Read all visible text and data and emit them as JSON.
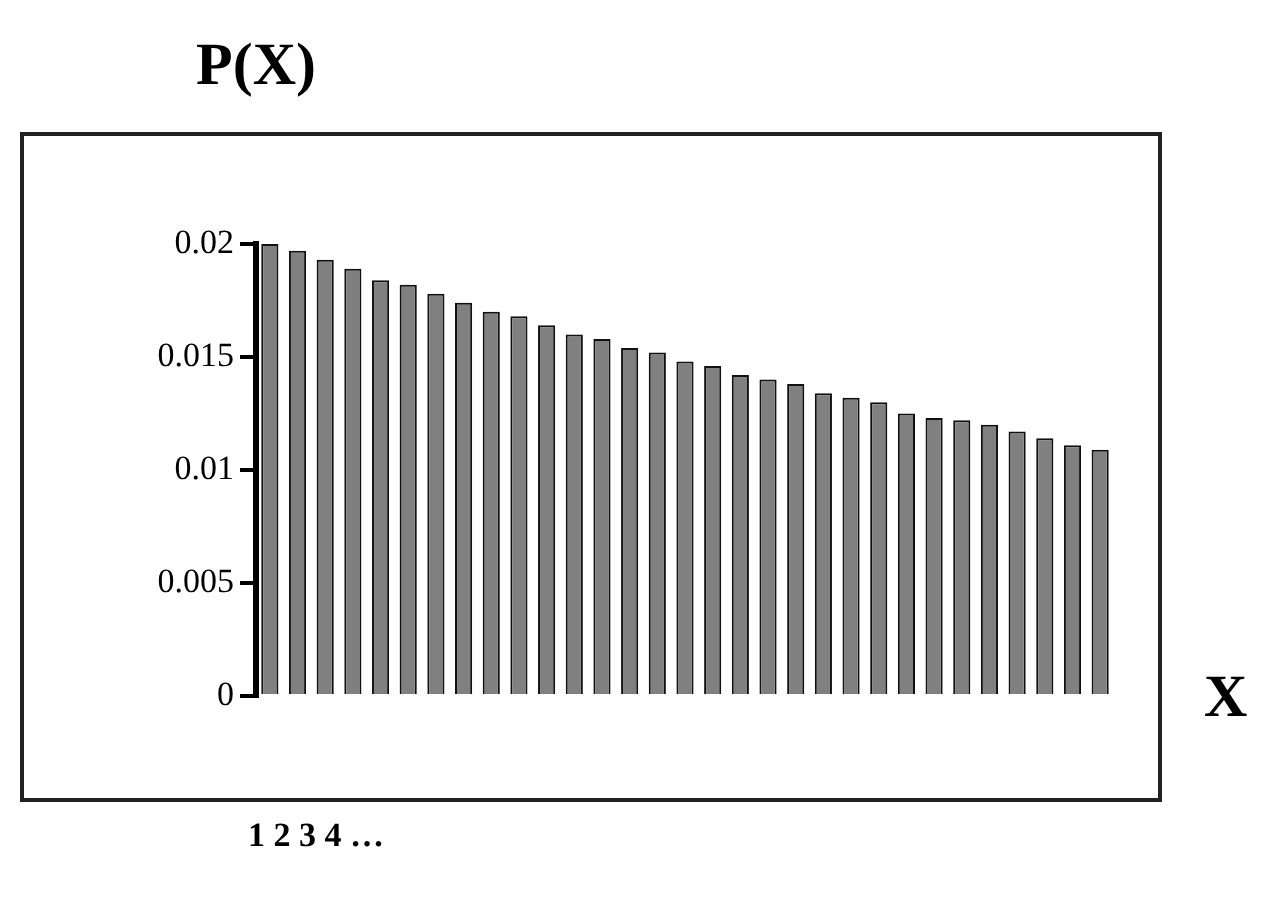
{
  "chart_data": {
    "type": "bar",
    "title": "P(X)",
    "xlabel": "X",
    "categories": [
      null,
      null,
      null,
      null,
      null,
      null,
      null,
      null,
      null,
      null,
      null,
      null,
      null,
      null,
      null,
      null,
      null,
      null,
      null,
      null,
      null,
      null,
      null,
      null,
      null,
      null,
      null,
      null,
      null,
      null,
      null
    ],
    "values": [
      0.02,
      0.0197,
      0.0193,
      0.0189,
      0.0184,
      0.0182,
      0.0178,
      0.0174,
      0.017,
      0.0168,
      0.0164,
      0.016,
      0.0158,
      0.0154,
      0.0152,
      0.0148,
      0.0146,
      0.0142,
      0.014,
      0.0138,
      0.0134,
      0.0132,
      0.013,
      0.0125,
      0.0123,
      0.0122,
      0.012,
      0.0117,
      0.0114,
      0.0111,
      0.0109
    ],
    "color": "#808080",
    "ylim": [
      0,
      0.02
    ],
    "yticks": [
      0,
      {
        "value": 0.005,
        "label": "0.005"
      },
      {
        "value": 0.01,
        "label": "0.01"
      },
      {
        "value": 0.015,
        "label": "0.015"
      },
      {
        "value": 0.02,
        "label": "0.02"
      }
    ],
    "grid": false,
    "legend": false,
    "annotations": [
      "1 2 3 4 …"
    ]
  }
}
